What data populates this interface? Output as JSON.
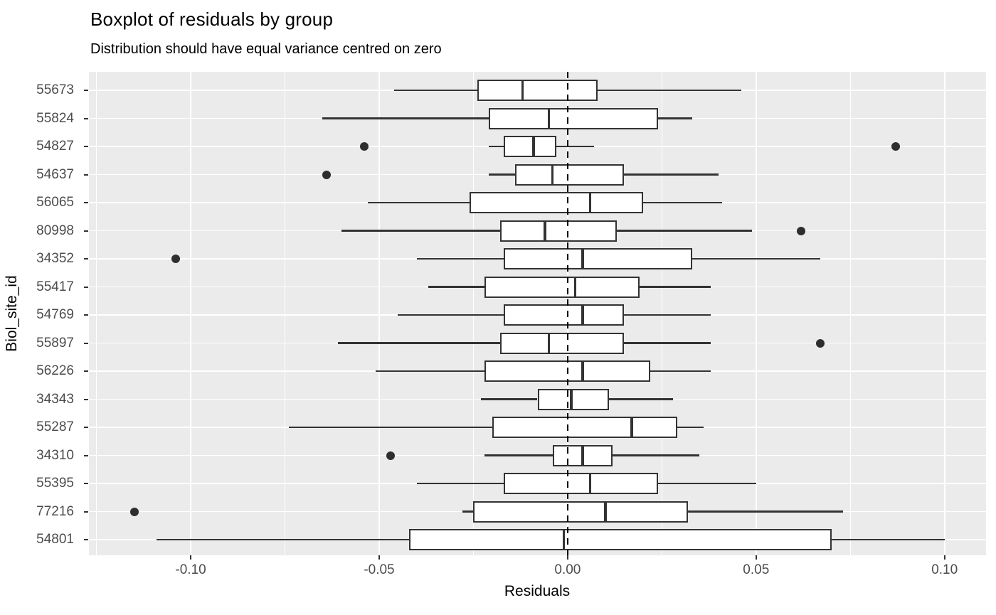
{
  "title": "Boxplot of residuals by group",
  "subtitle": "Distribution should have equal variance centred on zero",
  "chart_data": {
    "type": "boxplot",
    "orientation": "horizontal",
    "title": "Boxplot of residuals by group",
    "subtitle": "Distribution should have equal variance centred on zero",
    "xlabel": "Residuals",
    "ylabel": "Biol_site_id",
    "xlim": [
      -0.127,
      0.111
    ],
    "x_major_ticks": [
      -0.1,
      -0.05,
      0.0,
      0.05,
      0.1
    ],
    "x_tick_labels": [
      "-0.10",
      "-0.05",
      "0.00",
      "0.05",
      "0.10"
    ],
    "x_minor_ticks": [
      -0.125,
      -0.075,
      -0.025,
      0.025,
      0.075
    ],
    "reference_line_x": 0,
    "grid": true,
    "legend": "none",
    "panel_background": "#EBEBEB",
    "box_color": "#333333",
    "box_fill": "#ffffff",
    "groups_order": "top-to-bottom",
    "groups": [
      {
        "id": "55673",
        "whisker_lo": -0.046,
        "q1": -0.024,
        "median": -0.012,
        "q3": 0.008,
        "whisker_hi": 0.046,
        "outliers": []
      },
      {
        "id": "55824",
        "whisker_lo": -0.065,
        "q1": -0.021,
        "median": -0.005,
        "q3": 0.024,
        "whisker_hi": 0.033,
        "outliers": []
      },
      {
        "id": "54827",
        "whisker_lo": -0.021,
        "q1": -0.017,
        "median": -0.009,
        "q3": -0.003,
        "whisker_hi": 0.007,
        "outliers": [
          -0.054,
          0.087
        ]
      },
      {
        "id": "54637",
        "whisker_lo": -0.021,
        "q1": -0.014,
        "median": -0.004,
        "q3": 0.015,
        "whisker_hi": 0.04,
        "outliers": [
          -0.064
        ]
      },
      {
        "id": "56065",
        "whisker_lo": -0.053,
        "q1": -0.026,
        "median": 0.006,
        "q3": 0.02,
        "whisker_hi": 0.041,
        "outliers": []
      },
      {
        "id": "80998",
        "whisker_lo": -0.06,
        "q1": -0.018,
        "median": -0.006,
        "q3": 0.013,
        "whisker_hi": 0.049,
        "outliers": [
          0.062
        ]
      },
      {
        "id": "34352",
        "whisker_lo": -0.04,
        "q1": -0.017,
        "median": 0.004,
        "q3": 0.033,
        "whisker_hi": 0.067,
        "outliers": [
          -0.104
        ]
      },
      {
        "id": "55417",
        "whisker_lo": -0.037,
        "q1": -0.022,
        "median": 0.002,
        "q3": 0.019,
        "whisker_hi": 0.038,
        "outliers": []
      },
      {
        "id": "54769",
        "whisker_lo": -0.045,
        "q1": -0.017,
        "median": 0.004,
        "q3": 0.015,
        "whisker_hi": 0.038,
        "outliers": []
      },
      {
        "id": "55897",
        "whisker_lo": -0.061,
        "q1": -0.018,
        "median": -0.005,
        "q3": 0.015,
        "whisker_hi": 0.038,
        "outliers": [
          0.067
        ]
      },
      {
        "id": "56226",
        "whisker_lo": -0.051,
        "q1": -0.022,
        "median": 0.004,
        "q3": 0.022,
        "whisker_hi": 0.038,
        "outliers": []
      },
      {
        "id": "34343",
        "whisker_lo": -0.023,
        "q1": -0.008,
        "median": 0.001,
        "q3": 0.011,
        "whisker_hi": 0.028,
        "outliers": []
      },
      {
        "id": "55287",
        "whisker_lo": -0.074,
        "q1": -0.02,
        "median": 0.017,
        "q3": 0.029,
        "whisker_hi": 0.036,
        "outliers": []
      },
      {
        "id": "34310",
        "whisker_lo": -0.022,
        "q1": -0.004,
        "median": 0.004,
        "q3": 0.012,
        "whisker_hi": 0.035,
        "outliers": [
          -0.047
        ]
      },
      {
        "id": "55395",
        "whisker_lo": -0.04,
        "q1": -0.017,
        "median": 0.006,
        "q3": 0.024,
        "whisker_hi": 0.05,
        "outliers": []
      },
      {
        "id": "77216",
        "whisker_lo": -0.028,
        "q1": -0.025,
        "median": 0.01,
        "q3": 0.032,
        "whisker_hi": 0.073,
        "outliers": [
          -0.115
        ]
      },
      {
        "id": "54801",
        "whisker_lo": -0.109,
        "q1": -0.042,
        "median": -0.001,
        "q3": 0.07,
        "whisker_hi": 0.1,
        "outliers": []
      }
    ]
  }
}
